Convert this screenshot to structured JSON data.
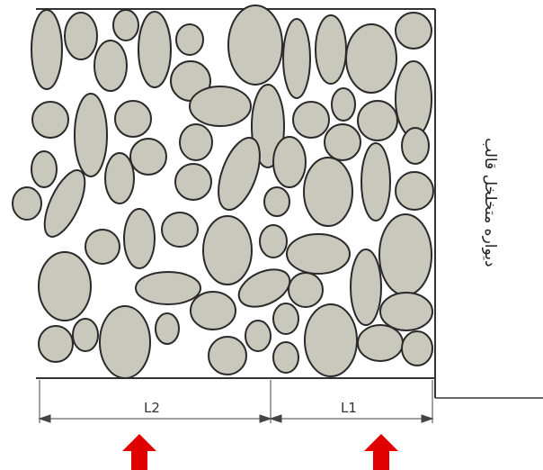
{
  "wall_label": "دیواره متخلخل قالب",
  "dimensions": [
    {
      "id": "l2",
      "label": "L2"
    },
    {
      "id": "l1",
      "label": "L1"
    }
  ],
  "colors": {
    "aggregate_fill": "#c9c8bd",
    "aggregate_stroke": "#2a2a2a",
    "arrow": "#e00000",
    "line": "#333333"
  },
  "icons": [
    "flow-arrow-up-icon",
    "flow-arrow-up-icon"
  ]
}
